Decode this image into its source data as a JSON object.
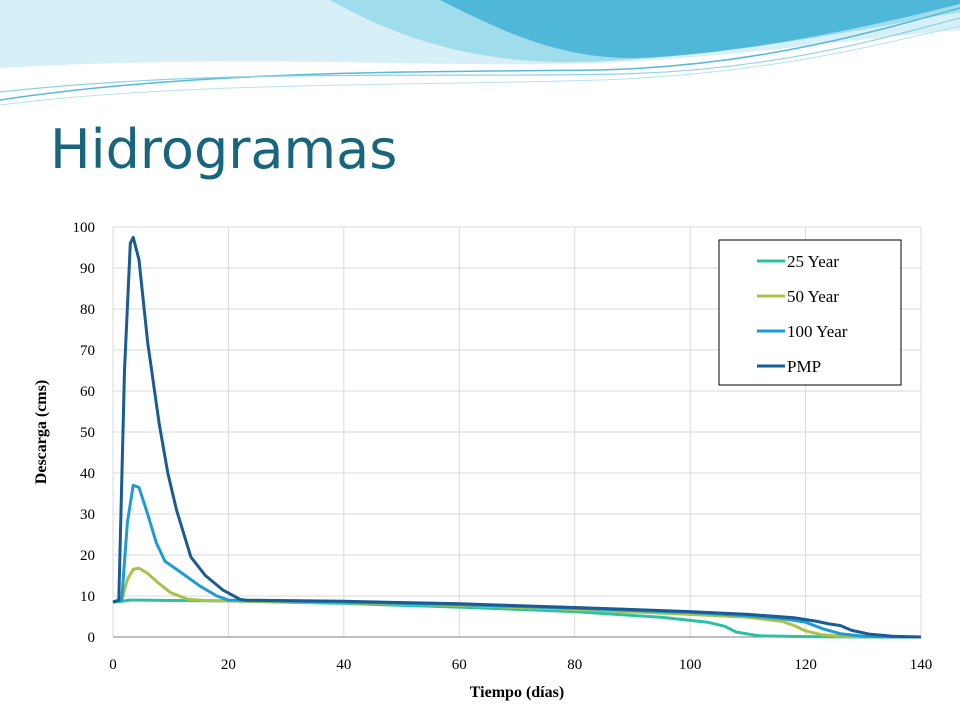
{
  "slide": {
    "title": "Hidrogramas"
  },
  "colors": {
    "title": "#17667e",
    "wave_light": "#bfe7f2",
    "wave_mid": "#7fd0e6",
    "wave_dark": "#2fa7c9",
    "grid": "#d9d9d9"
  },
  "chart_data": {
    "type": "line",
    "xlabel": "Tiempo (días)",
    "ylabel": "Descarga (cms)",
    "xlim": [
      0,
      140
    ],
    "ylim": [
      0,
      100
    ],
    "xticks": [
      "0",
      "20",
      "40",
      "60",
      "80",
      "100",
      "120",
      "140"
    ],
    "yticks": [
      "0",
      "10",
      "20",
      "30",
      "40",
      "50",
      "60",
      "70",
      "80",
      "90",
      "100"
    ],
    "grid": true,
    "legend_position": "top-right",
    "series": [
      {
        "name": "25 Year",
        "color": "#2cc1a0",
        "points": [
          [
            0,
            8.5
          ],
          [
            1.5,
            8.7
          ],
          [
            3,
            9
          ],
          [
            5,
            9
          ],
          [
            10,
            8.9
          ],
          [
            20,
            8.8
          ],
          [
            40,
            8.2
          ],
          [
            60,
            7.3
          ],
          [
            80,
            6.2
          ],
          [
            95,
            4.8
          ],
          [
            103,
            3.6
          ],
          [
            106,
            2.6
          ],
          [
            108,
            1.2
          ],
          [
            112,
            0.3
          ],
          [
            120,
            0.1
          ],
          [
            130,
            0
          ],
          [
            140,
            0
          ]
        ]
      },
      {
        "name": "50 Year",
        "color": "#a9c24a",
        "points": [
          [
            0,
            8.5
          ],
          [
            1.5,
            9
          ],
          [
            2.5,
            14
          ],
          [
            3.5,
            16.5
          ],
          [
            4.5,
            16.8
          ],
          [
            6,
            15.5
          ],
          [
            8,
            13
          ],
          [
            10,
            10.8
          ],
          [
            13,
            9.2
          ],
          [
            16,
            8.9
          ],
          [
            20,
            8.8
          ],
          [
            40,
            8.4
          ],
          [
            60,
            7.7
          ],
          [
            80,
            6.7
          ],
          [
            100,
            5.5
          ],
          [
            110,
            4.8
          ],
          [
            116,
            3.8
          ],
          [
            118,
            2.8
          ],
          [
            120,
            1.5
          ],
          [
            123,
            0.5
          ],
          [
            127,
            0.1
          ],
          [
            140,
            0
          ]
        ]
      },
      {
        "name": "100 Year",
        "color": "#1f9bd1",
        "points": [
          [
            0,
            8.5
          ],
          [
            1.5,
            9
          ],
          [
            2.5,
            28
          ],
          [
            3.5,
            37
          ],
          [
            4.5,
            36.5
          ],
          [
            6,
            30
          ],
          [
            7.5,
            23
          ],
          [
            9,
            18.5
          ],
          [
            12,
            15.5
          ],
          [
            15,
            12.5
          ],
          [
            18,
            10
          ],
          [
            20,
            9
          ],
          [
            40,
            8.5
          ],
          [
            60,
            7.9
          ],
          [
            80,
            7
          ],
          [
            100,
            6
          ],
          [
            110,
            5.2
          ],
          [
            116,
            4.5
          ],
          [
            120,
            3.6
          ],
          [
            123,
            2
          ],
          [
            126,
            0.8
          ],
          [
            130,
            0.2
          ],
          [
            134,
            0
          ],
          [
            140,
            0
          ]
        ]
      },
      {
        "name": "PMP",
        "color": "#1a5b93",
        "points": [
          [
            0,
            8.5
          ],
          [
            1,
            9
          ],
          [
            2,
            65
          ],
          [
            3,
            96
          ],
          [
            3.5,
            97.5
          ],
          [
            4.5,
            92
          ],
          [
            6,
            72
          ],
          [
            8,
            52
          ],
          [
            9.5,
            40
          ],
          [
            11,
            31
          ],
          [
            13.5,
            19.5
          ],
          [
            16,
            15
          ],
          [
            19,
            11.5
          ],
          [
            22,
            9.2
          ],
          [
            23,
            9
          ],
          [
            40,
            8.7
          ],
          [
            60,
            8.1
          ],
          [
            80,
            7.2
          ],
          [
            100,
            6.2
          ],
          [
            110,
            5.5
          ],
          [
            118,
            4.7
          ],
          [
            122,
            3.8
          ],
          [
            124,
            3.2
          ],
          [
            126,
            2.8
          ],
          [
            128,
            1.6
          ],
          [
            131,
            0.7
          ],
          [
            135,
            0.2
          ],
          [
            140,
            0
          ]
        ]
      }
    ]
  }
}
